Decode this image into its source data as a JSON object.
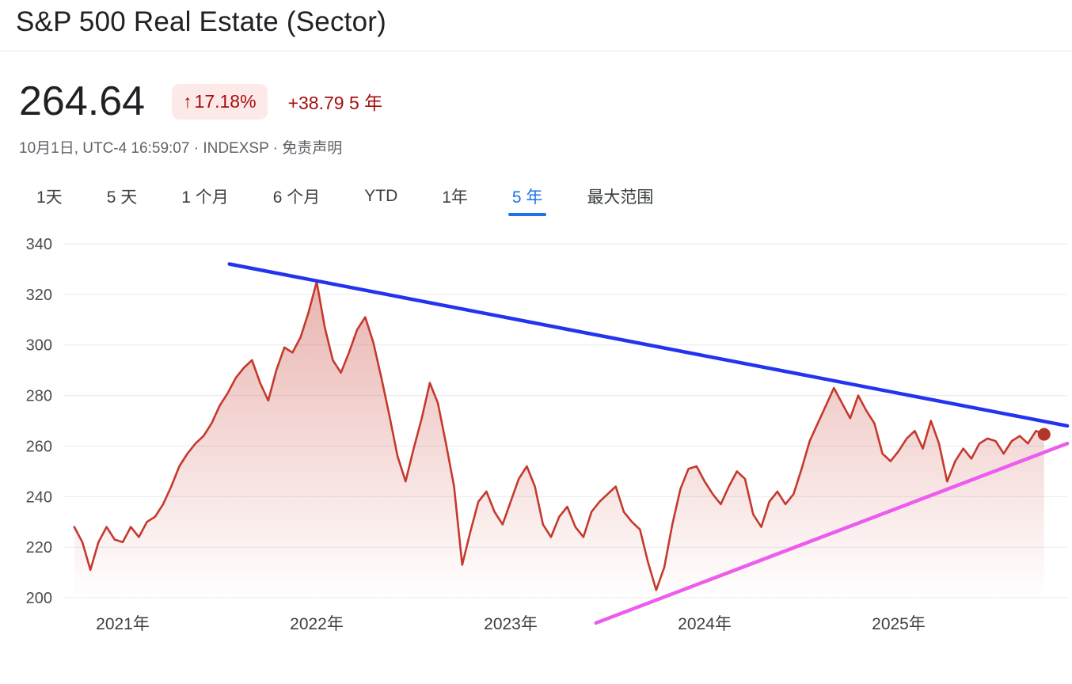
{
  "header": {
    "title": "S&P 500 Real Estate (Sector)"
  },
  "quote": {
    "price": "264.64",
    "change_arrow": "↑",
    "change_percent": "17.18%",
    "change_abs": "+38.79 5 年",
    "meta_prefix": "10月1日, UTC-4 16:59:07 · INDEXSP · ",
    "disclaimer": "免责声明"
  },
  "colors": {
    "up": "#a50e0e",
    "badge_bg": "#fdeae8",
    "active_tab": "#1a73e8",
    "series_line": "#c5392d",
    "trend_resistance": "#2433ee",
    "trend_support": "#ec5ced"
  },
  "range_tabs": [
    {
      "label": "1天",
      "active": false
    },
    {
      "label": "5 天",
      "active": false
    },
    {
      "label": "1 个月",
      "active": false
    },
    {
      "label": "6 个月",
      "active": false
    },
    {
      "label": "YTD",
      "active": false
    },
    {
      "label": "1年",
      "active": false
    },
    {
      "label": "5 年",
      "active": true
    },
    {
      "label": "最大范围",
      "active": false
    }
  ],
  "chart_data": {
    "type": "line",
    "title": "S&P 500 Real Estate (Sector)",
    "xlabel": "",
    "ylabel": "",
    "ylim": [
      190,
      345
    ],
    "grid": true,
    "y_ticks": [
      200,
      220,
      240,
      260,
      280,
      300,
      320,
      340
    ],
    "x_ticks": [
      {
        "x": 2021,
        "label": "2021年"
      },
      {
        "x": 2022,
        "label": "2022年"
      },
      {
        "x": 2023,
        "label": "2023年"
      },
      {
        "x": 2024,
        "label": "2024年"
      },
      {
        "x": 2025,
        "label": "2025年"
      }
    ],
    "series": [
      {
        "name": "S&P 500 Real Estate (Sector)",
        "color": "#c5392d",
        "fill_opacity_top": 0.38,
        "x_start": 2020.75,
        "x_step": 0.0416667,
        "values": [
          228,
          222,
          211,
          222,
          228,
          223,
          222,
          228,
          224,
          230,
          232,
          237,
          244,
          252,
          257,
          261,
          264,
          269,
          276,
          281,
          287,
          291,
          294,
          285,
          278,
          290,
          299,
          297,
          303,
          313,
          325,
          307,
          294,
          289,
          297,
          306,
          311,
          301,
          287,
          272,
          256,
          246,
          259,
          271,
          285,
          277,
          261,
          244,
          213,
          226,
          238,
          242,
          234,
          229,
          238,
          247,
          252,
          244,
          229,
          224,
          232,
          236,
          228,
          224,
          234,
          238,
          241,
          244,
          234,
          230,
          227,
          214,
          203,
          212,
          229,
          243,
          251,
          252,
          246,
          241,
          237,
          244,
          250,
          247,
          233,
          228,
          238,
          242,
          237,
          241,
          251,
          262,
          269,
          276,
          283,
          277,
          271,
          280,
          274,
          269,
          257,
          254,
          258,
          263,
          266,
          259,
          270,
          261,
          246,
          254,
          259,
          255,
          261,
          263,
          262,
          257,
          262,
          264,
          261,
          266,
          264.64
        ]
      }
    ],
    "trendlines": [
      {
        "name": "descending-resistance-trendline",
        "color": "#2433ee",
        "from": {
          "x": 2021.55,
          "value": 332
        },
        "to": {
          "x": 2025.87,
          "value": 268
        }
      },
      {
        "name": "ascending-support-trendline",
        "color": "#ec5ced",
        "from": {
          "x": 2023.44,
          "value": 190
        },
        "to": {
          "x": 2025.87,
          "value": 261
        }
      }
    ],
    "last_point": {
      "x": 2025.75,
      "value": 264.64,
      "color": "#b3362a"
    }
  }
}
